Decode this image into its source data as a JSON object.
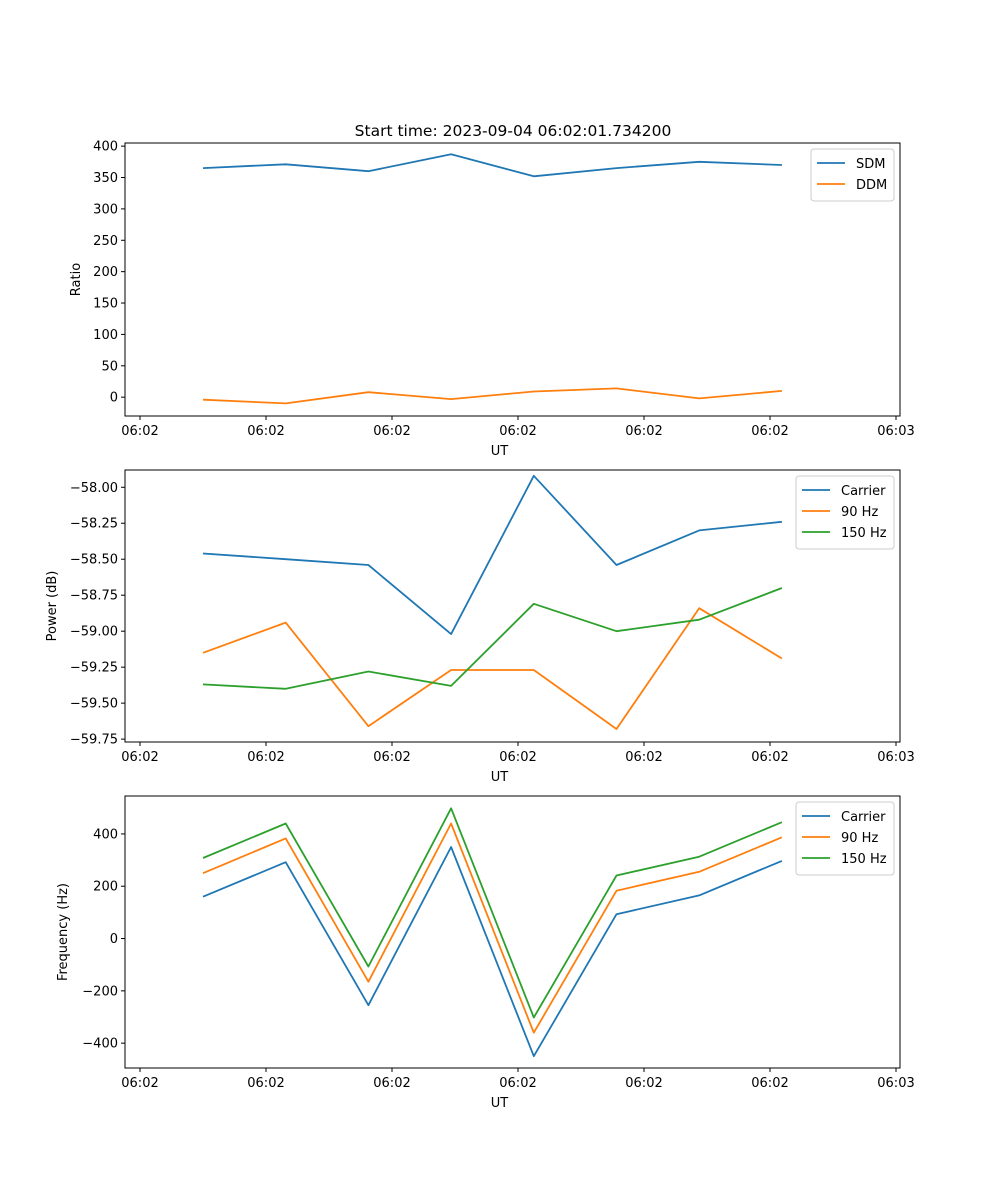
{
  "title": "Start time: 2023-09-04 06:02:01.734200",
  "colors": {
    "c0": "#1f77b4",
    "c1": "#ff7f0e",
    "c2": "#2ca02c"
  },
  "chart_data": [
    {
      "type": "line",
      "xlabel": "UT",
      "ylabel": "Ratio",
      "x_tick_labels": [
        "06:02",
        "06:02",
        "06:02",
        "06:02",
        "06:02",
        "06:02",
        "06:02"
      ],
      "x_tick_last": "06:03",
      "x": [
        1,
        2,
        3,
        4,
        5,
        6,
        7,
        8
      ],
      "xlim": [
        0.2,
        9.2
      ],
      "ylim": [
        -30,
        405
      ],
      "yticks": [
        0,
        50,
        100,
        150,
        200,
        250,
        300,
        350,
        400
      ],
      "ytick_labels": [
        "0",
        "50",
        "100",
        "150",
        "200",
        "250",
        "300",
        "350",
        "400"
      ],
      "legend_position": "top-right",
      "series": [
        {
          "name": "SDM",
          "color": "#1f77b4",
          "values": [
            365,
            371,
            360,
            387,
            352,
            365,
            375,
            370
          ]
        },
        {
          "name": "DDM",
          "color": "#ff7f0e",
          "values": [
            -4,
            -10,
            8,
            -3,
            9,
            14,
            -2,
            10
          ]
        }
      ]
    },
    {
      "type": "line",
      "xlabel": "UT",
      "ylabel": "Power (dB)",
      "x_tick_labels": [
        "06:02",
        "06:02",
        "06:02",
        "06:02",
        "06:02",
        "06:02",
        "06:02"
      ],
      "x_tick_last": "06:03",
      "x": [
        1,
        2,
        3,
        4,
        5,
        6,
        7,
        8
      ],
      "xlim": [
        0.2,
        9.2
      ],
      "ylim": [
        -59.77,
        -57.88
      ],
      "yticks": [
        -59.75,
        -59.5,
        -59.25,
        -59.0,
        -58.75,
        -58.5,
        -58.25,
        -58.0
      ],
      "ytick_labels": [
        "−59.75",
        "−59.50",
        "−59.25",
        "−59.00",
        "−58.75",
        "−58.50",
        "−58.25",
        "−58.00"
      ],
      "legend_position": "top-right",
      "series": [
        {
          "name": "Carrier",
          "color": "#1f77b4",
          "values": [
            -58.46,
            -58.5,
            -58.54,
            -59.02,
            -57.92,
            -58.54,
            -58.3,
            -58.24
          ]
        },
        {
          "name": "90 Hz",
          "color": "#ff7f0e",
          "values": [
            -59.15,
            -58.94,
            -59.66,
            -59.27,
            -59.27,
            -59.68,
            -58.84,
            -59.19
          ]
        },
        {
          "name": "150 Hz",
          "color": "#2ca02c",
          "values": [
            -59.37,
            -59.4,
            -59.28,
            -59.38,
            -58.81,
            -59.0,
            -58.92,
            -58.7
          ]
        }
      ]
    },
    {
      "type": "line",
      "xlabel": "UT",
      "ylabel": "Frequency (Hz)",
      "x_tick_labels": [
        "06:02",
        "06:02",
        "06:02",
        "06:02",
        "06:02",
        "06:02",
        "06:02"
      ],
      "x_tick_last": "06:03",
      "x": [
        1,
        2,
        3,
        4,
        5,
        6,
        7,
        8
      ],
      "xlim": [
        0.2,
        9.2
      ],
      "ylim": [
        -495,
        545
      ],
      "yticks": [
        -400,
        -200,
        0,
        200,
        400
      ],
      "ytick_labels": [
        "−400",
        "−200",
        "0",
        "200",
        "400"
      ],
      "legend_position": "top-right",
      "series": [
        {
          "name": "Carrier",
          "color": "#1f77b4",
          "values": [
            160,
            292,
            -255,
            350,
            -450,
            93,
            165,
            297
          ]
        },
        {
          "name": "90 Hz",
          "color": "#ff7f0e",
          "values": [
            250,
            383,
            -165,
            440,
            -360,
            183,
            255,
            387
          ]
        },
        {
          "name": "150 Hz",
          "color": "#2ca02c",
          "values": [
            308,
            440,
            -107,
            498,
            -302,
            241,
            313,
            445
          ]
        }
      ]
    }
  ]
}
